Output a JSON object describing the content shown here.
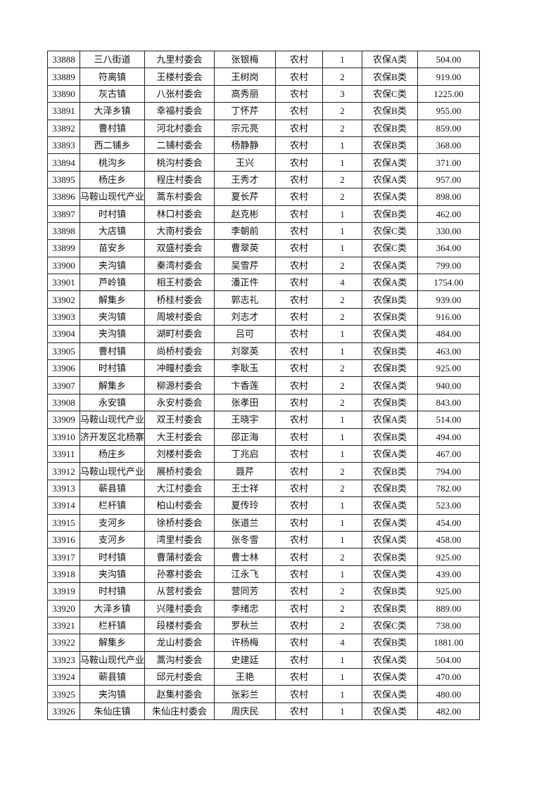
{
  "table": {
    "rows": [
      [
        "33888",
        "三八街道",
        "九里村委会",
        "张银梅",
        "农村",
        "1",
        "农保A类",
        "504.00"
      ],
      [
        "33889",
        "符离镇",
        "王楼村委会",
        "王树岗",
        "农村",
        "2",
        "农保B类",
        "919.00"
      ],
      [
        "33890",
        "灰古镇",
        "八张村委会",
        "高秀丽",
        "农村",
        "3",
        "农保C类",
        "1225.00"
      ],
      [
        "33891",
        "大泽乡镇",
        "幸福村委会",
        "丁怀芹",
        "农村",
        "2",
        "农保B类",
        "955.00"
      ],
      [
        "33892",
        "曹村镇",
        "河北村委会",
        "宗元亮",
        "农村",
        "2",
        "农保B类",
        "859.00"
      ],
      [
        "33893",
        "西二铺乡",
        "二铺村委会",
        "杨静静",
        "农村",
        "1",
        "农保B类",
        "368.00"
      ],
      [
        "33894",
        "桃沟乡",
        "桃沟村委会",
        "王兴",
        "农村",
        "1",
        "农保A类",
        "371.00"
      ],
      [
        "33895",
        "杨庄乡",
        "程庄村委会",
        "王秀才",
        "农村",
        "2",
        "农保A类",
        "957.00"
      ],
      [
        "33896",
        "马鞍山现代产业",
        "蒿东村委会",
        "夏长芹",
        "农村",
        "2",
        "农保A类",
        "898.00"
      ],
      [
        "33897",
        "时村镇",
        "林口村委会",
        "赵克彬",
        "农村",
        "1",
        "农保B类",
        "462.00"
      ],
      [
        "33898",
        "大店镇",
        "大南村委会",
        "李朝前",
        "农村",
        "1",
        "农保C类",
        "330.00"
      ],
      [
        "33899",
        "苗安乡",
        "双盛村委会",
        "曹翠英",
        "农村",
        "1",
        "农保C类",
        "364.00"
      ],
      [
        "33900",
        "夹沟镇",
        "秦湾村委会",
        "吴雪芹",
        "农村",
        "2",
        "农保A类",
        "799.00"
      ],
      [
        "33901",
        "芦岭镇",
        "相王村委会",
        "潘正件",
        "农村",
        "4",
        "农保A类",
        "1754.00"
      ],
      [
        "33902",
        "解集乡",
        "桥桂村委会",
        "郭志礼",
        "农村",
        "2",
        "农保B类",
        "939.00"
      ],
      [
        "33903",
        "夹沟镇",
        "周坡村委会",
        "刘志才",
        "农村",
        "2",
        "农保B类",
        "916.00"
      ],
      [
        "33904",
        "夹沟镇",
        "湖町村委会",
        "吕可",
        "农村",
        "1",
        "农保A类",
        "484.00"
      ],
      [
        "33905",
        "曹村镇",
        "尚桥村委会",
        "刘翠英",
        "农村",
        "1",
        "农保B类",
        "463.00"
      ],
      [
        "33906",
        "时村镇",
        "冲疃村委会",
        "李耿玉",
        "农村",
        "2",
        "农保B类",
        "925.00"
      ],
      [
        "33907",
        "解集乡",
        "柳源村委会",
        "卞香莲",
        "农村",
        "2",
        "农保A类",
        "940.00"
      ],
      [
        "33908",
        "永安镇",
        "永安村委会",
        "张孝田",
        "农村",
        "2",
        "农保B类",
        "843.00"
      ],
      [
        "33909",
        "马鞍山现代产业",
        "双王村委会",
        "王晓宇",
        "农村",
        "1",
        "农保A类",
        "514.00"
      ],
      [
        "33910",
        "济开发区北杨寨",
        "大王村委会",
        "邵正海",
        "农村",
        "1",
        "农保B类",
        "494.00"
      ],
      [
        "33911",
        "杨庄乡",
        "刘楼村委会",
        "丁兆启",
        "农村",
        "1",
        "农保A类",
        "467.00"
      ],
      [
        "33912",
        "马鞍山现代产业",
        "展桥村委会",
        "聂芹",
        "农村",
        "2",
        "农保B类",
        "794.00"
      ],
      [
        "33913",
        "蕲县镇",
        "大江村委会",
        "王士祥",
        "农村",
        "2",
        "农保B类",
        "782.00"
      ],
      [
        "33914",
        "栏杆镇",
        "柏山村委会",
        "夏传玲",
        "农村",
        "1",
        "农保A类",
        "523.00"
      ],
      [
        "33915",
        "支河乡",
        "徐桥村委会",
        "张道兰",
        "农村",
        "1",
        "农保A类",
        "454.00"
      ],
      [
        "33916",
        "支河乡",
        "湾里村委会",
        "张冬雪",
        "农村",
        "1",
        "农保A类",
        "458.00"
      ],
      [
        "33917",
        "时村镇",
        "曹蒲村委会",
        "曹士林",
        "农村",
        "2",
        "农保B类",
        "925.00"
      ],
      [
        "33918",
        "夹沟镇",
        "孙寨村委会",
        "江永飞",
        "农村",
        "1",
        "农保A类",
        "439.00"
      ],
      [
        "33919",
        "时村镇",
        "从营村委会",
        "营同芳",
        "农村",
        "2",
        "农保B类",
        "925.00"
      ],
      [
        "33920",
        "大泽乡镇",
        "兴隆村委会",
        "李绪忠",
        "农村",
        "2",
        "农保B类",
        "889.00"
      ],
      [
        "33921",
        "栏杆镇",
        "段楼村委会",
        "罗秋兰",
        "农村",
        "2",
        "农保C类",
        "738.00"
      ],
      [
        "33922",
        "解集乡",
        "龙山村委会",
        "许杨梅",
        "农村",
        "4",
        "农保B类",
        "1881.00"
      ],
      [
        "33923",
        "马鞍山现代产业",
        "蒿沟村委会",
        "史建廷",
        "农村",
        "1",
        "农保A类",
        "504.00"
      ],
      [
        "33924",
        "蕲县镇",
        "邱元村委会",
        "王艳",
        "农村",
        "1",
        "农保A类",
        "470.00"
      ],
      [
        "33925",
        "夹沟镇",
        "赵集村委会",
        "张彩兰",
        "农村",
        "1",
        "农保A类",
        "480.00"
      ],
      [
        "33926",
        "朱仙庄镇",
        "朱仙庄村委会",
        "周庆民",
        "农村",
        "1",
        "农保A类",
        "482.00"
      ]
    ]
  }
}
